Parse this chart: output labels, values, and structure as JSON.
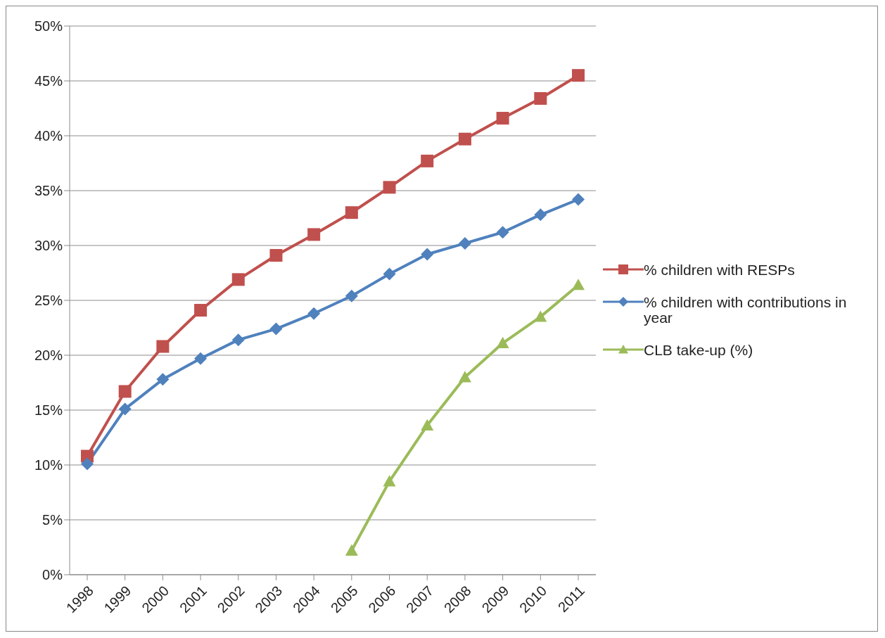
{
  "chart_data": {
    "type": "line",
    "categories": [
      "1998",
      "1999",
      "2000",
      "2001",
      "2002",
      "2003",
      "2004",
      "2005",
      "2006",
      "2007",
      "2008",
      "2009",
      "2010",
      "2011"
    ],
    "series": [
      {
        "name": "% children with RESPs",
        "color": "#c0504d",
        "marker": "square",
        "values": [
          10.8,
          16.7,
          20.8,
          24.1,
          26.9,
          29.1,
          31.0,
          33.0,
          35.3,
          37.7,
          39.7,
          41.6,
          43.4,
          45.5
        ]
      },
      {
        "name": "% children with contributions in year",
        "color": "#4f81bd",
        "marker": "diamond",
        "values": [
          10.1,
          15.1,
          17.8,
          19.7,
          21.4,
          22.4,
          23.8,
          25.4,
          27.4,
          29.2,
          30.2,
          31.2,
          32.8,
          34.2
        ]
      },
      {
        "name": "CLB take-up (%)",
        "color": "#9bbb59",
        "marker": "triangle",
        "values": [
          null,
          null,
          null,
          null,
          null,
          null,
          null,
          2.2,
          8.5,
          13.6,
          18.0,
          21.1,
          23.5,
          26.4
        ]
      }
    ],
    "ylim": [
      0,
      50
    ],
    "yticks": [
      {
        "value": 0,
        "label": "0%"
      },
      {
        "value": 5,
        "label": "5%"
      },
      {
        "value": 10,
        "label": "10%"
      },
      {
        "value": 15,
        "label": "15%"
      },
      {
        "value": 20,
        "label": "20%"
      },
      {
        "value": 25,
        "label": "25%"
      },
      {
        "value": 30,
        "label": "30%"
      },
      {
        "value": 35,
        "label": "35%"
      },
      {
        "value": 40,
        "label": "40%"
      },
      {
        "value": 45,
        "label": "45%"
      },
      {
        "value": 50,
        "label": "50%"
      }
    ],
    "grid": "y",
    "legend": "right",
    "line_style": "solid"
  }
}
